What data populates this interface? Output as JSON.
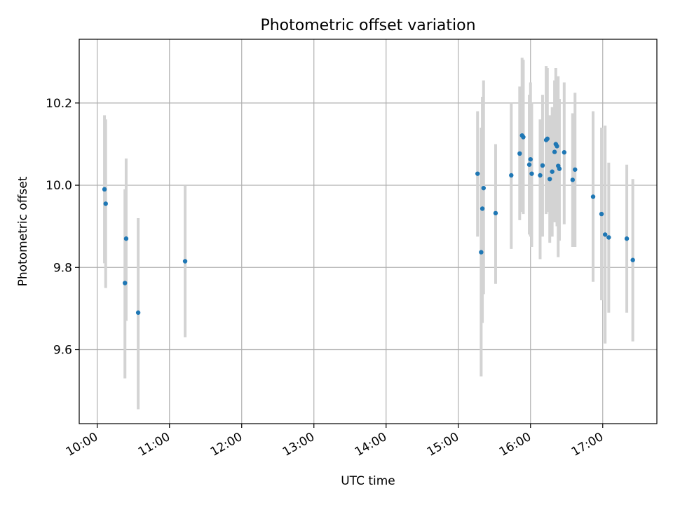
{
  "chart_data": {
    "type": "scatter",
    "title": "Photometric offset variation",
    "xlabel": "UTC time",
    "ylabel": "Photometric offset",
    "xlim": [
      "09:45",
      "17:45"
    ],
    "ylim": [
      9.42,
      10.355
    ],
    "x_ticks": [
      "10:00",
      "11:00",
      "12:00",
      "13:00",
      "14:00",
      "15:00",
      "16:00",
      "17:00"
    ],
    "y_ticks": [
      9.6,
      9.8,
      10.0,
      10.2
    ],
    "grid": true,
    "colors": {
      "points": "#1f77b4",
      "errorbars": "#d3d3d3",
      "grid": "#b0b0b0"
    },
    "points": [
      {
        "x": "10:06",
        "y": 9.99,
        "yerr_low": 9.81,
        "yerr_high": 10.17
      },
      {
        "x": "10:07",
        "y": 9.955,
        "yerr_low": 9.75,
        "yerr_high": 10.16
      },
      {
        "x": "10:23",
        "y": 9.762,
        "yerr_low": 9.53,
        "yerr_high": 9.99
      },
      {
        "x": "10:24",
        "y": 9.87,
        "yerr_low": 9.67,
        "yerr_high": 10.065
      },
      {
        "x": "10:34",
        "y": 9.69,
        "yerr_low": 9.455,
        "yerr_high": 9.92
      },
      {
        "x": "11:13",
        "y": 9.815,
        "yerr_low": 9.63,
        "yerr_high": 10.0
      },
      {
        "x": "15:16",
        "y": 10.028,
        "yerr_low": 9.875,
        "yerr_high": 10.18
      },
      {
        "x": "15:19",
        "y": 9.837,
        "yerr_low": 9.535,
        "yerr_high": 10.14
      },
      {
        "x": "15:20",
        "y": 9.943,
        "yerr_low": 9.665,
        "yerr_high": 10.215
      },
      {
        "x": "15:21",
        "y": 9.993,
        "yerr_low": 9.735,
        "yerr_high": 10.255
      },
      {
        "x": "15:31",
        "y": 9.932,
        "yerr_low": 9.76,
        "yerr_high": 10.1
      },
      {
        "x": "15:44",
        "y": 10.024,
        "yerr_low": 9.845,
        "yerr_high": 10.2
      },
      {
        "x": "15:51",
        "y": 10.077,
        "yerr_low": 9.915,
        "yerr_high": 10.24
      },
      {
        "x": "15:53",
        "y": 10.121,
        "yerr_low": 9.935,
        "yerr_high": 10.31
      },
      {
        "x": "15:54",
        "y": 10.117,
        "yerr_low": 9.93,
        "yerr_high": 10.305
      },
      {
        "x": "15:59",
        "y": 10.05,
        "yerr_low": 9.88,
        "yerr_high": 10.22
      },
      {
        "x": "16:00",
        "y": 10.063,
        "yerr_low": 9.875,
        "yerr_high": 10.25
      },
      {
        "x": "16:01",
        "y": 10.028,
        "yerr_low": 9.85,
        "yerr_high": 10.2
      },
      {
        "x": "16:08",
        "y": 10.024,
        "yerr_low": 9.82,
        "yerr_high": 10.16
      },
      {
        "x": "16:10",
        "y": 10.048,
        "yerr_low": 9.875,
        "yerr_high": 10.22
      },
      {
        "x": "16:13",
        "y": 10.11,
        "yerr_low": 9.93,
        "yerr_high": 10.29
      },
      {
        "x": "16:14",
        "y": 10.113,
        "yerr_low": 9.935,
        "yerr_high": 10.285
      },
      {
        "x": "16:16",
        "y": 10.015,
        "yerr_low": 9.86,
        "yerr_high": 10.17
      },
      {
        "x": "16:18",
        "y": 10.033,
        "yerr_low": 9.875,
        "yerr_high": 10.19
      },
      {
        "x": "16:20",
        "y": 10.081,
        "yerr_low": 9.91,
        "yerr_high": 10.255
      },
      {
        "x": "16:21",
        "y": 10.1,
        "yerr_low": 9.91,
        "yerr_high": 10.285
      },
      {
        "x": "16:22",
        "y": 10.095,
        "yerr_low": 9.9,
        "yerr_high": 10.26
      },
      {
        "x": "16:23",
        "y": 10.047,
        "yerr_low": 9.825,
        "yerr_high": 10.265
      },
      {
        "x": "16:24",
        "y": 10.04,
        "yerr_low": 9.865,
        "yerr_high": 10.21
      },
      {
        "x": "16:28",
        "y": 10.08,
        "yerr_low": 9.905,
        "yerr_high": 10.25
      },
      {
        "x": "16:35",
        "y": 10.013,
        "yerr_low": 9.85,
        "yerr_high": 10.175
      },
      {
        "x": "16:37",
        "y": 10.038,
        "yerr_low": 9.85,
        "yerr_high": 10.225
      },
      {
        "x": "16:52",
        "y": 9.972,
        "yerr_low": 9.765,
        "yerr_high": 10.18
      },
      {
        "x": "16:59",
        "y": 9.93,
        "yerr_low": 9.72,
        "yerr_high": 10.14
      },
      {
        "x": "17:02",
        "y": 9.88,
        "yerr_low": 9.615,
        "yerr_high": 10.145
      },
      {
        "x": "17:05",
        "y": 9.873,
        "yerr_low": 9.69,
        "yerr_high": 10.055
      },
      {
        "x": "17:20",
        "y": 9.87,
        "yerr_low": 9.69,
        "yerr_high": 10.05
      },
      {
        "x": "17:25",
        "y": 9.818,
        "yerr_low": 9.62,
        "yerr_high": 10.015
      }
    ]
  }
}
